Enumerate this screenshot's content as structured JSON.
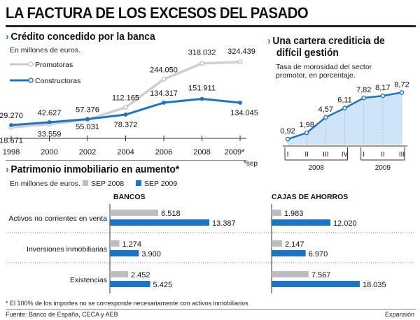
{
  "title": "LA FACTURA DE LOS EXCESOS DEL PASADO",
  "colors": {
    "blue": "#1b74c5",
    "gray": "#bdbdbd",
    "light_blue": "#cfe5f7"
  },
  "chart_data": [
    {
      "type": "line",
      "title": "Crédito concedido por la banca",
      "subtitle": "En millones de euros.",
      "x": [
        "1998",
        "2000",
        "2002",
        "2004",
        "2006",
        "2008",
        "2009*"
      ],
      "x_note": "*sep",
      "ylim": [
        0,
        340000
      ],
      "series": [
        {
          "name": "Promotoras",
          "values": [
            18671,
            33559,
            55031,
            112165,
            244050,
            318032,
            324439
          ],
          "labels": [
            "18.671",
            "33.559",
            "55.031",
            "112.165",
            "244.050",
            "318.032",
            "324.439"
          ]
        },
        {
          "name": "Constructoras",
          "values": [
            29270,
            42627,
            57376,
            78372,
            134317,
            151911,
            134045
          ],
          "labels": [
            "29.270",
            "42.627",
            "57.376",
            "78.372",
            "134.317",
            "151.911",
            "134.045"
          ]
        }
      ]
    },
    {
      "type": "area",
      "title": "Una cartera crediticia de difícil gestión",
      "subtitle_lines": [
        "Tasa de morosidad del sector",
        "promotor, en porcentaje."
      ],
      "x": [
        "I",
        "II",
        "III",
        "IV",
        "I",
        "II",
        "III"
      ],
      "groups": [
        {
          "label": "2008",
          "span": 4
        },
        {
          "label": "2009",
          "span": 3
        }
      ],
      "ylim": [
        0,
        9
      ],
      "values": [
        0.92,
        1.98,
        4.57,
        6.11,
        7.82,
        8.17,
        8.72
      ],
      "labels": [
        "0,92",
        "1,98",
        "4,57",
        "6,11",
        "7,82",
        "8,17",
        "8,72"
      ]
    },
    {
      "type": "bar",
      "title": "Patrimonio inmobiliario en aumento",
      "title_mark": "*",
      "subtitle": "En millones de euros.",
      "categories": [
        "Activos no corrientes en venta",
        "Inversiones inmobiliarias",
        "Existencias"
      ],
      "legend": [
        "SEP 2008",
        "SEP 2009"
      ],
      "panels": [
        {
          "name": "BANCOS",
          "series": [
            {
              "name": "SEP 2008",
              "values": [
                6518,
                1274,
                2452
              ],
              "labels": [
                "6.518",
                "1.274",
                "2.452"
              ]
            },
            {
              "name": "SEP 2009",
              "values": [
                13387,
                3900,
                5425
              ],
              "labels": [
                "13.387",
                "3.900",
                "5.425"
              ]
            }
          ],
          "xlim": [
            0,
            13387
          ]
        },
        {
          "name": "CAJAS  DE AHORROS",
          "series": [
            {
              "name": "SEP 2008",
              "values": [
                1983,
                2147,
                7567
              ],
              "labels": [
                "1.983",
                "2.147",
                "7.567"
              ]
            },
            {
              "name": "SEP 2009",
              "values": [
                12020,
                6970,
                18035
              ],
              "labels": [
                "12.020",
                "6.970",
                "18.035"
              ]
            }
          ],
          "xlim": [
            0,
            18035
          ]
        }
      ]
    }
  ],
  "footnote": "* El 100% de los importes no se corresponde necesariamente con activos inmobiliarios",
  "source": "Fuente: Banco de España, CECA y AEB",
  "credit": "Expansión"
}
